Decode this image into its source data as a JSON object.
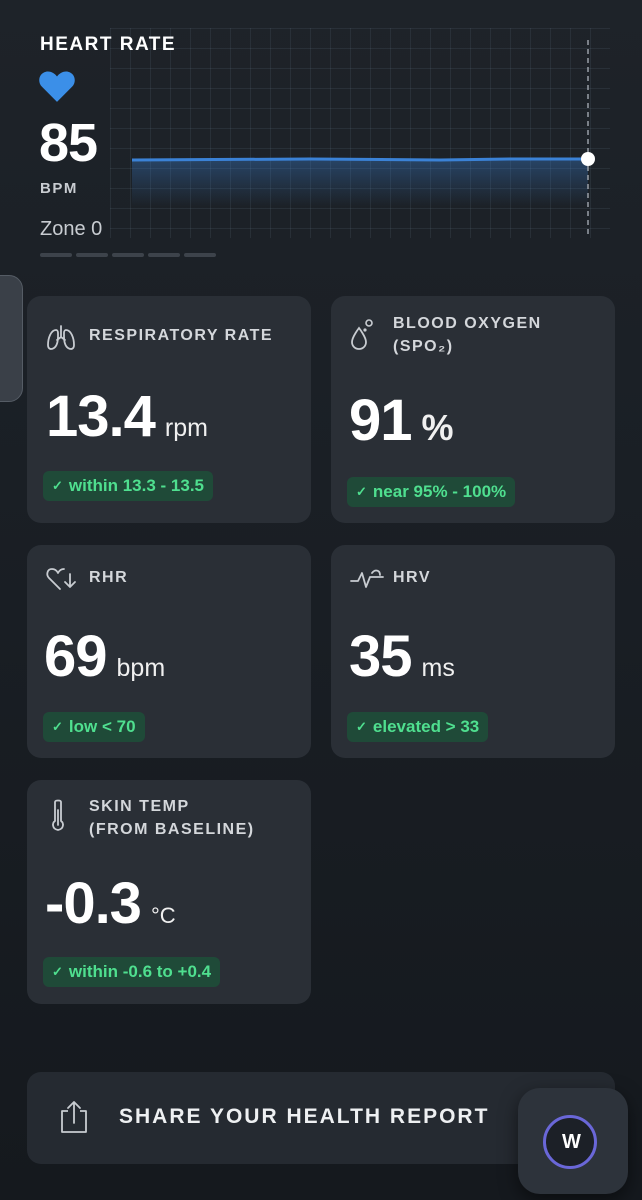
{
  "heart_rate": {
    "title": "HEART RATE",
    "value": "85",
    "unit": "BPM",
    "zone": "Zone 0",
    "zone_segment_count": 5,
    "line_color": "#3b82d6"
  },
  "metrics": {
    "respiratory": {
      "label": "RESPIRATORY RATE",
      "value": "13.4",
      "unit": "rpm",
      "status": "within 13.3 - 13.5",
      "icon": "lungs-icon"
    },
    "blood_oxygen": {
      "label_line1": "BLOOD OXYGEN",
      "label_line2": "(SPO₂)",
      "value": "91",
      "unit": "%",
      "status": "near 95% - 100%",
      "icon": "droplet-icon"
    },
    "rhr": {
      "label": "RHR",
      "value": "69",
      "unit": "bpm",
      "status": "low < 70",
      "icon": "heart-down-icon"
    },
    "hrv": {
      "label": "HRV",
      "value": "35",
      "unit": "ms",
      "status": "elevated > 33",
      "icon": "heartbeat-wave-icon"
    },
    "skin_temp": {
      "label_line1": "SKIN TEMP",
      "label_line2": "(FROM BASELINE)",
      "value": "-0.3",
      "unit": "°C",
      "status": "within -0.6 to +0.4",
      "icon": "thermometer-icon"
    }
  },
  "status_check": "✓",
  "share": {
    "label": "SHARE YOUR HEALTH REPORT",
    "icon": "share-upload-icon"
  },
  "fab": {
    "label": "W",
    "icon": "whoop-logo-icon",
    "ring_color": "#6a67d8"
  },
  "colors": {
    "badge_bg": "#1f4a38",
    "badge_text": "#4fdf8f",
    "card_bg": "#2a2f36",
    "heart": "#3b8fe8"
  }
}
